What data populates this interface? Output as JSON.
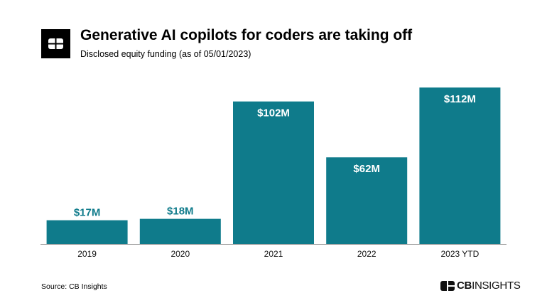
{
  "header": {
    "title": "Generative AI copilots for coders are taking off",
    "subtitle": "Disclosed equity funding (as of 05/01/2023)"
  },
  "footer": {
    "source": "Source: CB Insights",
    "brand_logo_text": "CBINSIGHTS"
  },
  "colors": {
    "bar": "#0f7b8b",
    "label_outside": "#0f7b8b",
    "label_inside": "#ffffff"
  },
  "chart_data": {
    "type": "bar",
    "title": "Generative AI copilots for coders are taking off",
    "subtitle": "Disclosed equity funding (as of 05/01/2023)",
    "categories": [
      "2019",
      "2020",
      "2021",
      "2022",
      "2023 YTD"
    ],
    "values": [
      17,
      18,
      102,
      62,
      112
    ],
    "data_labels": [
      "$17M",
      "$18M",
      "$102M",
      "$62M",
      "$112M"
    ],
    "unit": "$M",
    "xlabel": "",
    "ylabel": "",
    "ylim": [
      0,
      112
    ],
    "grid": false,
    "legend": "none"
  }
}
